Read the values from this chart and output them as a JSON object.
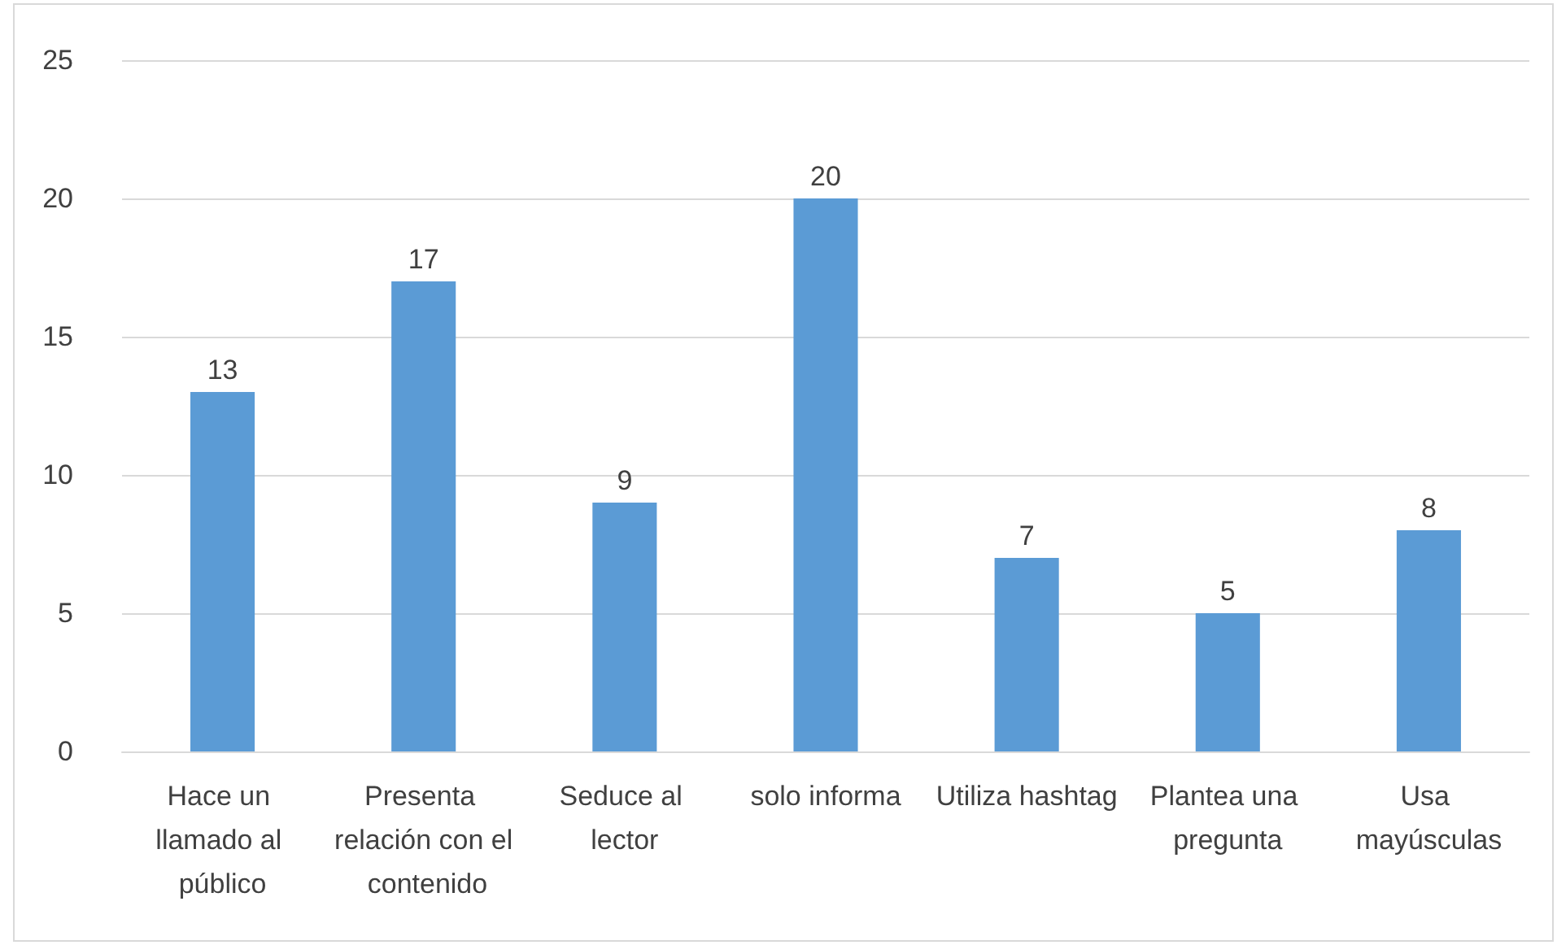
{
  "chart_data": {
    "type": "bar",
    "categories": [
      "Hace un llamado al público",
      "Presenta relación con el contenido",
      "Seduce al lector",
      "solo informa",
      "Utiliza hashtag",
      "Plantea una pregunta",
      "Usa mayúsculas"
    ],
    "values": [
      13,
      17,
      9,
      20,
      7,
      5,
      8
    ],
    "color": "#5b9bd5",
    "ylim": [
      0,
      25
    ],
    "yticks": [
      0,
      5,
      10,
      15,
      20,
      25
    ],
    "grid": "y",
    "data_labels": true
  }
}
